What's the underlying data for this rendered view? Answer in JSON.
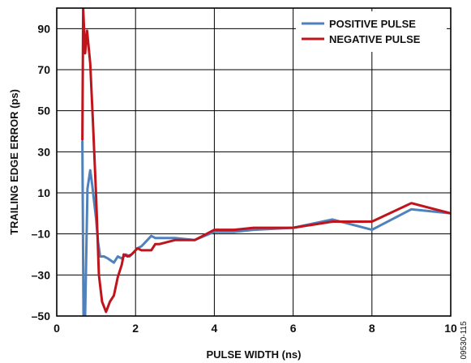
{
  "chart_data": {
    "type": "line",
    "title": "",
    "xlabel": "PULSE WIDTH (ns)",
    "ylabel": "TRAILING EDGE ERROR (ps)",
    "xlim": [
      0,
      10
    ],
    "ylim": [
      -50,
      100
    ],
    "x_ticks": [
      0,
      2,
      4,
      6,
      8,
      10
    ],
    "x_tick_labels": [
      "0",
      "2",
      "4",
      "6",
      "8",
      "10"
    ],
    "y_ticks": [
      -50,
      -30,
      -10,
      10,
      30,
      50,
      70,
      90
    ],
    "y_tick_labels": [
      "–50",
      "–30",
      "–10",
      "10",
      "30",
      "50",
      "70",
      "90"
    ],
    "grid": true,
    "legend_position": "top-right",
    "series": [
      {
        "name": "POSITIVE PULSE",
        "color": "#4f81bd",
        "points": [
          [
            0.65,
            35
          ],
          [
            0.68,
            -50
          ],
          [
            0.72,
            -50
          ],
          [
            0.78,
            12
          ],
          [
            0.85,
            21
          ],
          [
            0.9,
            14
          ],
          [
            1.0,
            -3
          ],
          [
            1.05,
            -14
          ],
          [
            1.1,
            -21
          ],
          [
            1.2,
            -21
          ],
          [
            1.3,
            -22
          ],
          [
            1.45,
            -24
          ],
          [
            1.55,
            -21
          ],
          [
            1.65,
            -22
          ],
          [
            1.75,
            -20
          ],
          [
            1.85,
            -21
          ],
          [
            1.95,
            -19
          ],
          [
            2.05,
            -17
          ],
          [
            2.15,
            -16
          ],
          [
            2.25,
            -14
          ],
          [
            2.4,
            -11
          ],
          [
            2.5,
            -12
          ],
          [
            2.6,
            -12
          ],
          [
            3.0,
            -12
          ],
          [
            3.5,
            -13
          ],
          [
            4.0,
            -9
          ],
          [
            4.5,
            -9
          ],
          [
            5.0,
            -8
          ],
          [
            6.0,
            -7
          ],
          [
            7.0,
            -3
          ],
          [
            8.0,
            -8
          ],
          [
            9.0,
            2
          ],
          [
            10.0,
            0
          ]
        ]
      },
      {
        "name": "NEGATIVE PULSE",
        "color": "#c0141c",
        "points": [
          [
            0.65,
            36
          ],
          [
            0.67,
            100
          ],
          [
            0.72,
            78
          ],
          [
            0.77,
            89
          ],
          [
            0.85,
            73
          ],
          [
            0.92,
            44
          ],
          [
            1.0,
            8
          ],
          [
            1.07,
            -30
          ],
          [
            1.15,
            -43
          ],
          [
            1.25,
            -48
          ],
          [
            1.35,
            -43
          ],
          [
            1.45,
            -40
          ],
          [
            1.55,
            -31
          ],
          [
            1.65,
            -25
          ],
          [
            1.7,
            -20
          ],
          [
            1.8,
            -21
          ],
          [
            1.9,
            -20
          ],
          [
            2.05,
            -17
          ],
          [
            2.15,
            -18
          ],
          [
            2.25,
            -18
          ],
          [
            2.4,
            -18
          ],
          [
            2.5,
            -15
          ],
          [
            2.6,
            -15
          ],
          [
            3.0,
            -13
          ],
          [
            3.5,
            -13
          ],
          [
            4.0,
            -8
          ],
          [
            4.5,
            -8
          ],
          [
            5.0,
            -7
          ],
          [
            6.0,
            -7
          ],
          [
            7.0,
            -4
          ],
          [
            8.0,
            -4
          ],
          [
            9.0,
            5
          ],
          [
            10.0,
            0
          ]
        ]
      }
    ]
  },
  "figure_id": "09530-115"
}
